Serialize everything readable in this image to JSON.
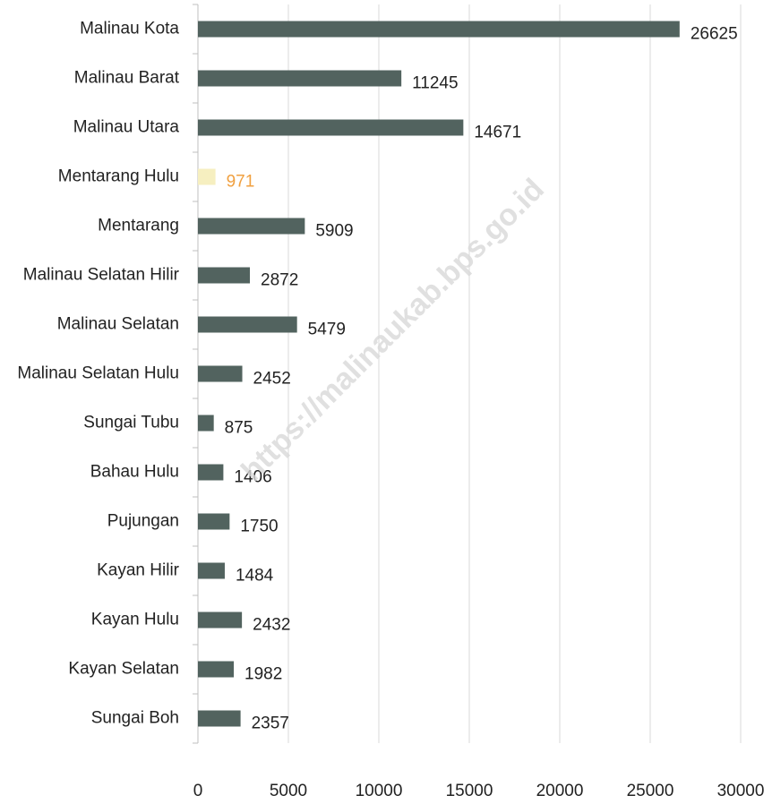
{
  "chart_data": {
    "type": "bar",
    "orientation": "horizontal",
    "categories": [
      "Malinau Kota",
      "Malinau Barat",
      "Malinau Utara",
      "Mentarang Hulu",
      "Mentarang",
      "Malinau Selatan Hilir",
      "Malinau Selatan",
      "Malinau Selatan Hulu",
      "Sungai Tubu",
      "Bahau Hulu",
      "Pujungan",
      "Kayan Hilir",
      "Kayan Hulu",
      "Kayan Selatan",
      "Sungai Boh"
    ],
    "values": [
      26625,
      11245,
      14671,
      971,
      5909,
      2872,
      5479,
      2452,
      875,
      1406,
      1750,
      1484,
      2432,
      1982,
      2357
    ],
    "colors": [
      "#52635f",
      "#52635f",
      "#52635f",
      "#f6efc0",
      "#52635f",
      "#52635f",
      "#52635f",
      "#52635f",
      "#52635f",
      "#52635f",
      "#52635f",
      "#52635f",
      "#52635f",
      "#52635f",
      "#52635f"
    ],
    "label_colors": [
      "#222222",
      "#222222",
      "#222222",
      "#f0a040",
      "#222222",
      "#222222",
      "#222222",
      "#222222",
      "#222222",
      "#222222",
      "#222222",
      "#222222",
      "#222222",
      "#222222",
      "#222222"
    ],
    "xlim": [
      0,
      30000
    ],
    "xticks": [
      0,
      5000,
      10000,
      15000,
      20000,
      25000,
      30000
    ],
    "grid": true,
    "watermark": "https://malinaukab.bps.go.id"
  }
}
